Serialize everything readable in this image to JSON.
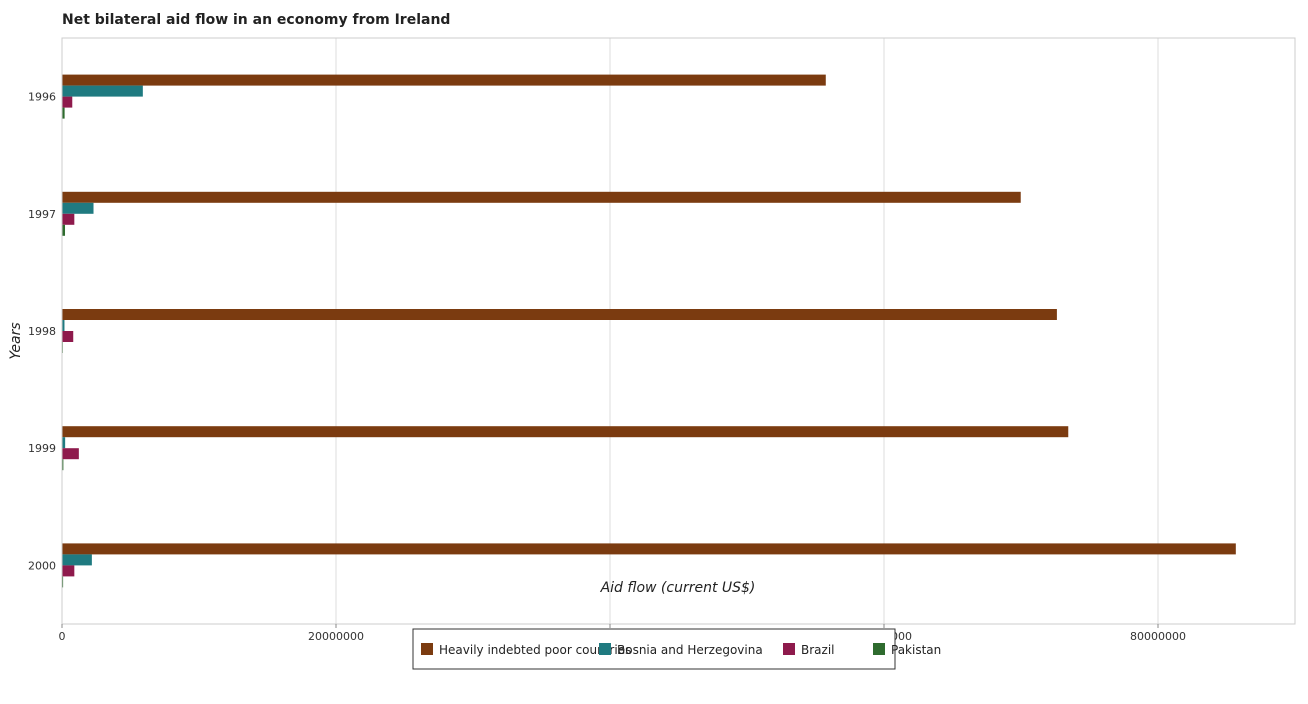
{
  "chart_data": {
    "type": "bar",
    "orientation": "horizontal",
    "title": "Net bilateral aid flow in an economy from Ireland",
    "xlabel": "Aid flow (current US$)",
    "ylabel": "Years",
    "categories": [
      "1996",
      "1997",
      "1998",
      "1999",
      "2000"
    ],
    "xlim": [
      0,
      90000000
    ],
    "xticks": [
      0,
      20000000,
      40000000,
      60000000,
      80000000
    ],
    "xtick_labels": [
      "0",
      "20000000",
      "40000000",
      "60000000",
      "80000000"
    ],
    "grid": true,
    "legend_position": "bottom",
    "series": [
      {
        "name": "Heavily indebted poor countries",
        "color": "#7b3b10",
        "values": [
          55750000,
          69980000,
          72620000,
          73450000,
          85680000
        ]
      },
      {
        "name": "Bosnia and Herzegovina",
        "color": "#1f7a80",
        "values": [
          5900000,
          2300000,
          180000,
          230000,
          2180000
        ]
      },
      {
        "name": "Brazil",
        "color": "#8e1a4c",
        "values": [
          750000,
          900000,
          820000,
          1230000,
          900000
        ]
      },
      {
        "name": "Pakistan",
        "color": "#2e6b2e",
        "values": [
          190000,
          220000,
          60000,
          100000,
          80000
        ]
      }
    ]
  }
}
